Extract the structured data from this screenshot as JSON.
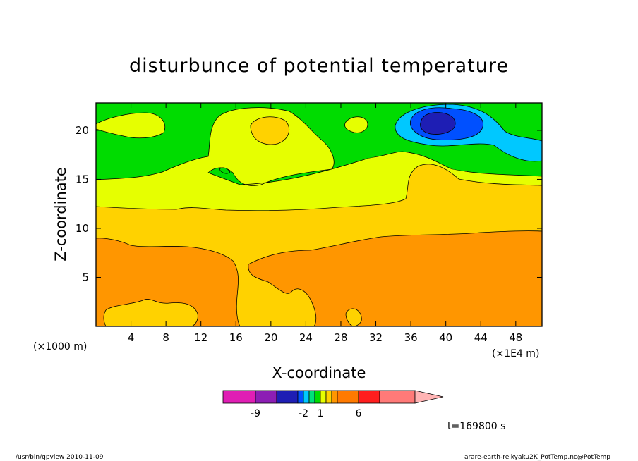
{
  "chart_data": {
    "type": "heatmap",
    "title": "disturbunce of potential temperature",
    "xlabel": "X-coordinate",
    "ylabel": "Z-coordinate",
    "x_unit_left": "(×1000 m)",
    "x_unit_right": "(×1E4 m)",
    "xlim": [
      0,
      51
    ],
    "ylim": [
      0,
      22.8
    ],
    "x_ticks": [
      4,
      8,
      12,
      16,
      20,
      24,
      28,
      32,
      36,
      40,
      44,
      48
    ],
    "y_ticks": [
      5,
      10,
      15,
      20
    ],
    "levels": [
      {
        "range": "< -9",
        "color": "#e01eb4"
      },
      {
        "range": "-9 to -6",
        "color": "#8c1eb4"
      },
      {
        "range": "-6 to -3",
        "color": "#1e1eb4"
      },
      {
        "range": "-3 to -2",
        "color": "#0050ff"
      },
      {
        "range": "-2 to -1",
        "color": "#00c8ff"
      },
      {
        "range": "-1 to 0",
        "color": "#00e07a"
      },
      {
        "range": "0 to 1",
        "color": "#00dc00"
      },
      {
        "range": "1 to 2",
        "color": "#e6ff00"
      },
      {
        "range": "2 to 3",
        "color": "#ffd200"
      },
      {
        "range": "3 to 4",
        "color": "#ff9600"
      },
      {
        "range": "4 to 6",
        "color": "#ff7a00"
      },
      {
        "range": "6 to 9",
        "color": "#ff1e1e"
      },
      {
        "range": "> 9",
        "color": "#ff7a78"
      }
    ],
    "colorbar_labels": [
      "-9",
      "-2",
      "1",
      "6"
    ],
    "regions": [
      {
        "value": "1 to 2",
        "location": "band z 12.5-15.5 and upper tongue at x 14-26"
      },
      {
        "value": "0 to 1",
        "location": "upper layer z > 15, most of domain"
      },
      {
        "value": "-1 to 0",
        "location": "x 35-51, z 18-22"
      },
      {
        "value": "-3 to -2",
        "location": "x 36-44, z 19-22"
      },
      {
        "value": "-6 to -3",
        "location": "centre near x 39, z 20.5"
      },
      {
        "value": "2 to 3",
        "location": "layer z 9-12.5 and warm column x 16-25"
      },
      {
        "value": "3 to 4",
        "location": "lowest layer z < 9"
      }
    ]
  },
  "annotations": {
    "time": "t=169800 s",
    "footer_left": "/usr/bin/gpview  2010-11-09",
    "footer_right": "arare-earth-reikyaku2K_PotTemp.nc@PotTemp"
  }
}
